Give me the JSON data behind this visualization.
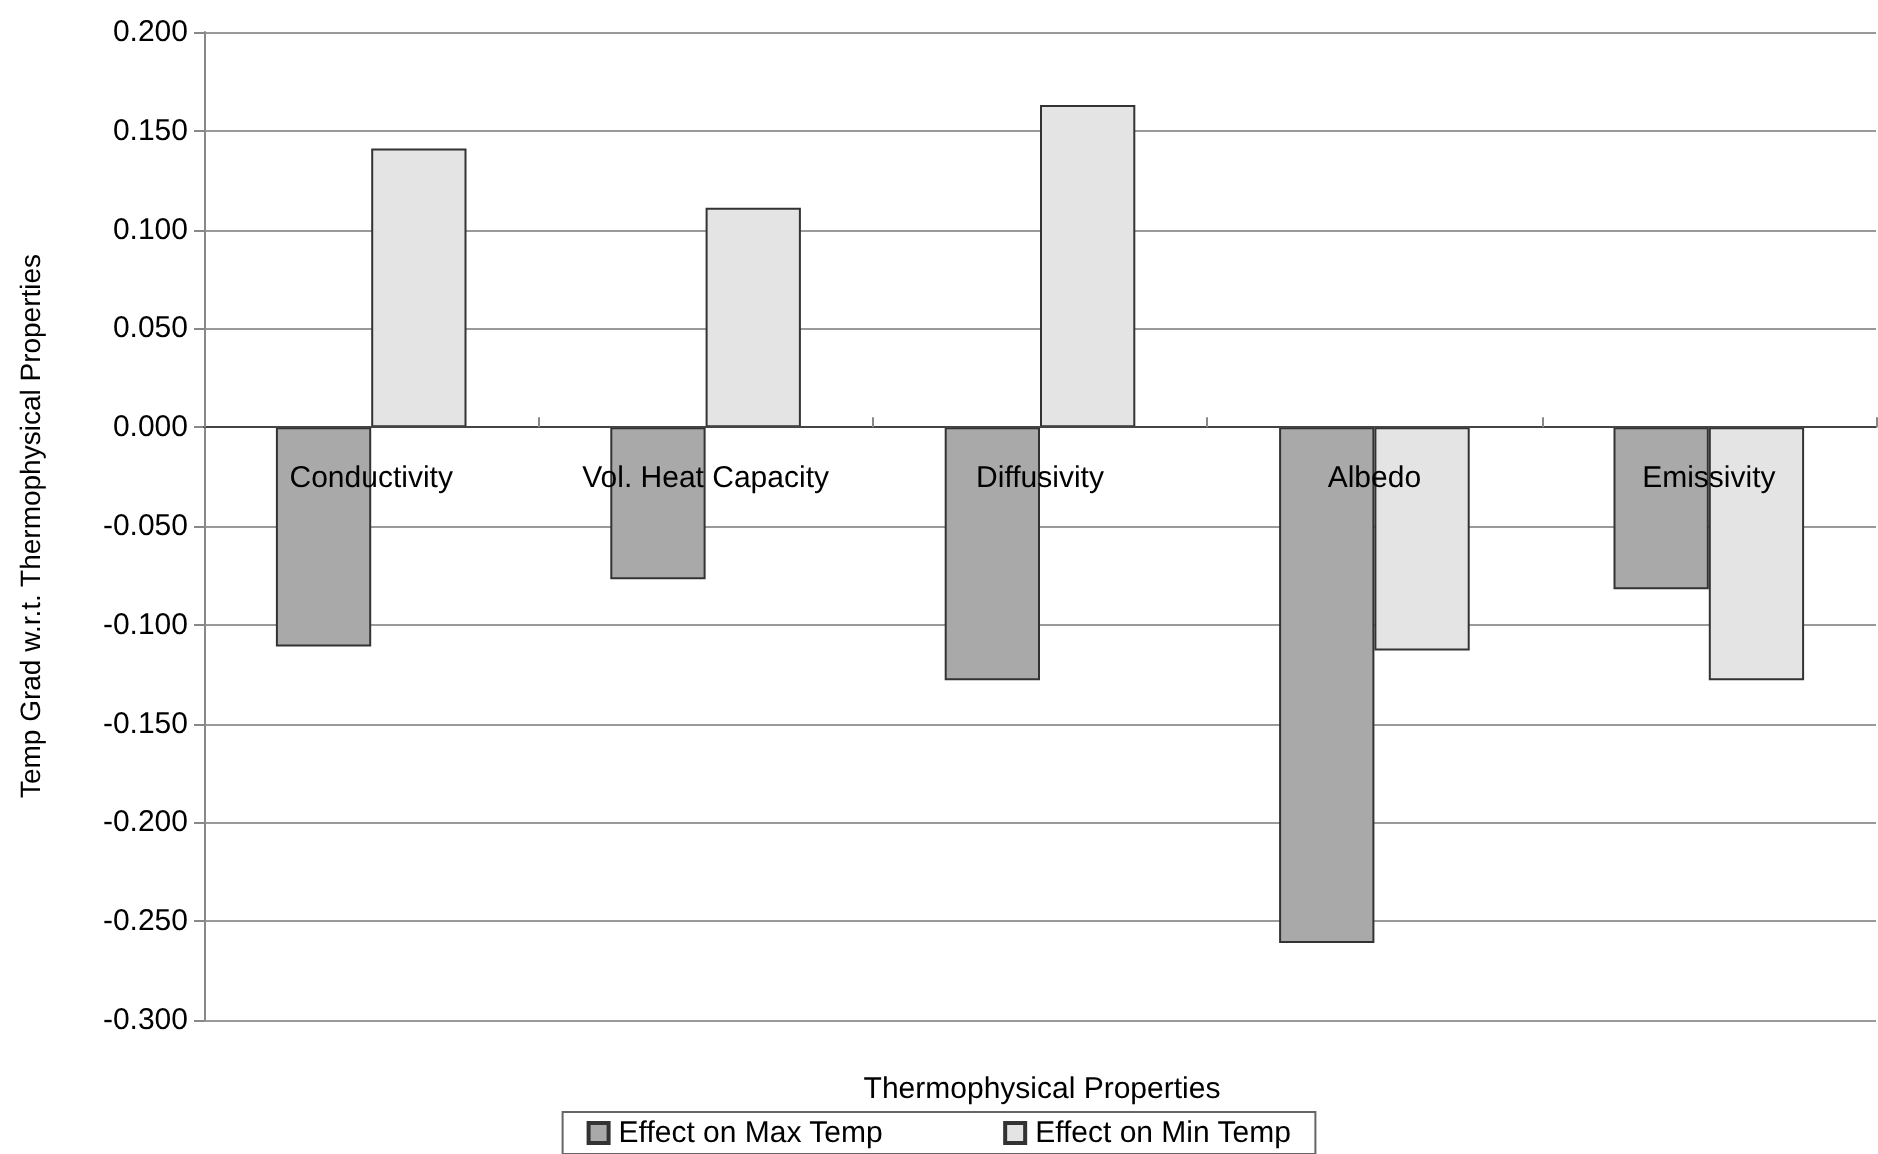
{
  "chart_data": {
    "type": "bar",
    "xlabel": "Thermophysical Properties",
    "ylabel": "Temp Grad w.r.t. Thermophysical Properties",
    "categories": [
      "Conductivity",
      "Vol. Heat Capacity",
      "Diffusivity",
      "Albedo",
      "Emissivity"
    ],
    "series": [
      {
        "name": "Effect on Max Temp",
        "color": "#a9a9a9",
        "values": [
          -0.111,
          -0.077,
          -0.128,
          -0.261,
          -0.082
        ]
      },
      {
        "name": "Effect on Min Temp",
        "color": "#e4e4e4",
        "values": [
          0.141,
          0.111,
          0.163,
          -0.113,
          -0.128
        ]
      }
    ],
    "ylim": [
      -0.3,
      0.2
    ],
    "yticks": [
      {
        "value": -0.3,
        "label": "-0.300"
      },
      {
        "value": -0.25,
        "label": "-0.250"
      },
      {
        "value": -0.2,
        "label": "-0.200"
      },
      {
        "value": -0.15,
        "label": "-0.150"
      },
      {
        "value": -0.1,
        "label": "-0.100"
      },
      {
        "value": -0.05,
        "label": "-0.050"
      },
      {
        "value": 0,
        "label": "0.000"
      },
      {
        "value": 0.05,
        "label": "0.050"
      },
      {
        "value": 0.1,
        "label": "0.100"
      },
      {
        "value": 0.15,
        "label": "0.150"
      },
      {
        "value": 0.2,
        "label": "0.200"
      }
    ],
    "grid": "y",
    "legend": "bottom"
  }
}
